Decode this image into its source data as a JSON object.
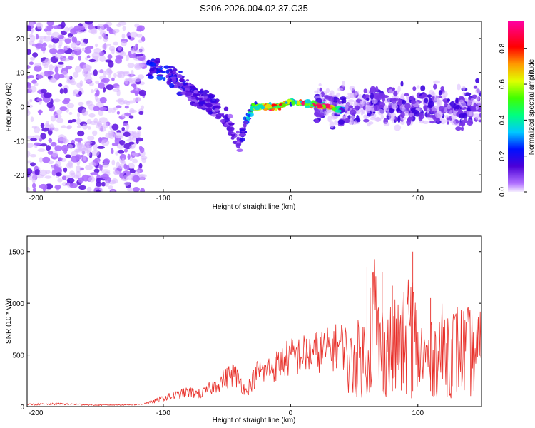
{
  "title": "S206.2026.004.02.37.C35",
  "colorbar": {
    "label": "Normalized spectral amplitude",
    "range": [
      0.0,
      0.95
    ],
    "ticks": [
      "0.0",
      "0.2",
      "0.4",
      "0.6",
      "0.8"
    ],
    "tick_values": [
      0.0,
      0.2,
      0.4,
      0.6,
      0.8
    ]
  },
  "chart_data": [
    {
      "type": "heatmap",
      "title": "S206.2026.004.02.37.C35",
      "xlabel": "Height of straight line (km)",
      "ylabel": "Frequency (Hz)",
      "xlim": [
        -207,
        150
      ],
      "ylim": [
        -25,
        25
      ],
      "x_ticks": [
        "-200",
        "-100",
        "0",
        "100"
      ],
      "x_tick_values": [
        -200,
        -100,
        0,
        100
      ],
      "y_ticks": [
        "-20",
        "-10",
        "0",
        "10",
        "20"
      ],
      "y_tick_values": [
        -20,
        -10,
        0,
        10,
        20
      ],
      "colorscale": "rainbow (purple-blue-cyan-green-yellow-red-magenta)",
      "ridge": {
        "description": "strongest signal band",
        "x": [
          -110,
          -100,
          -90,
          -80,
          -70,
          -60,
          -50,
          -40,
          -30,
          -20,
          -10,
          0,
          10,
          20,
          30,
          40
        ],
        "frequency": [
          12,
          10,
          8,
          5,
          2,
          0,
          -4,
          -10,
          0,
          0,
          0,
          1.5,
          1,
          0.5,
          0,
          -1
        ],
        "peak_amplitude": [
          0.2,
          0.25,
          0.2,
          0.15,
          0.15,
          0.15,
          0.15,
          0.1,
          0.45,
          0.7,
          0.85,
          0.5,
          0.85,
          0.8,
          0.9,
          0.3
        ]
      }
    },
    {
      "type": "line",
      "xlabel": "Height of straight line (km)",
      "ylabel": "SNR (10 * v/v)",
      "xlim": [
        -207,
        150
      ],
      "ylim": [
        0,
        1650
      ],
      "x_ticks": [
        "-200",
        "-100",
        "0",
        "100"
      ],
      "x_tick_values": [
        -200,
        -100,
        0,
        100
      ],
      "y_ticks": [
        "0",
        "500",
        "1000",
        "1500"
      ],
      "y_tick_values": [
        0,
        500,
        1000,
        1500
      ],
      "color": "#e8302a",
      "series": [
        {
          "name": "SNR",
          "x": [
            -207,
            -180,
            -150,
            -120,
            -110,
            -100,
            -90,
            -80,
            -70,
            -60,
            -50,
            -45,
            -40,
            -35,
            -30,
            -25,
            -20,
            -15,
            -10,
            -5,
            0,
            10,
            20,
            30,
            40,
            45,
            50,
            60,
            65,
            70,
            80,
            90,
            95,
            100,
            110,
            120,
            130,
            140,
            150
          ],
          "y": [
            20,
            25,
            15,
            20,
            40,
            80,
            110,
            140,
            120,
            200,
            280,
            320,
            250,
            150,
            250,
            350,
            330,
            380,
            400,
            450,
            480,
            500,
            530,
            550,
            600,
            560,
            700,
            800,
            1620,
            900,
            900,
            1000,
            1400,
            800,
            700,
            900,
            900,
            850,
            800
          ]
        }
      ],
      "spikes": [
        {
          "x": 64,
          "y": 1650
        },
        {
          "x": 60,
          "y": 1350
        },
        {
          "x": 72,
          "y": 1300
        },
        {
          "x": 96,
          "y": 1500
        },
        {
          "x": 80,
          "y": 1170
        },
        {
          "x": 110,
          "y": 1050
        }
      ]
    }
  ]
}
